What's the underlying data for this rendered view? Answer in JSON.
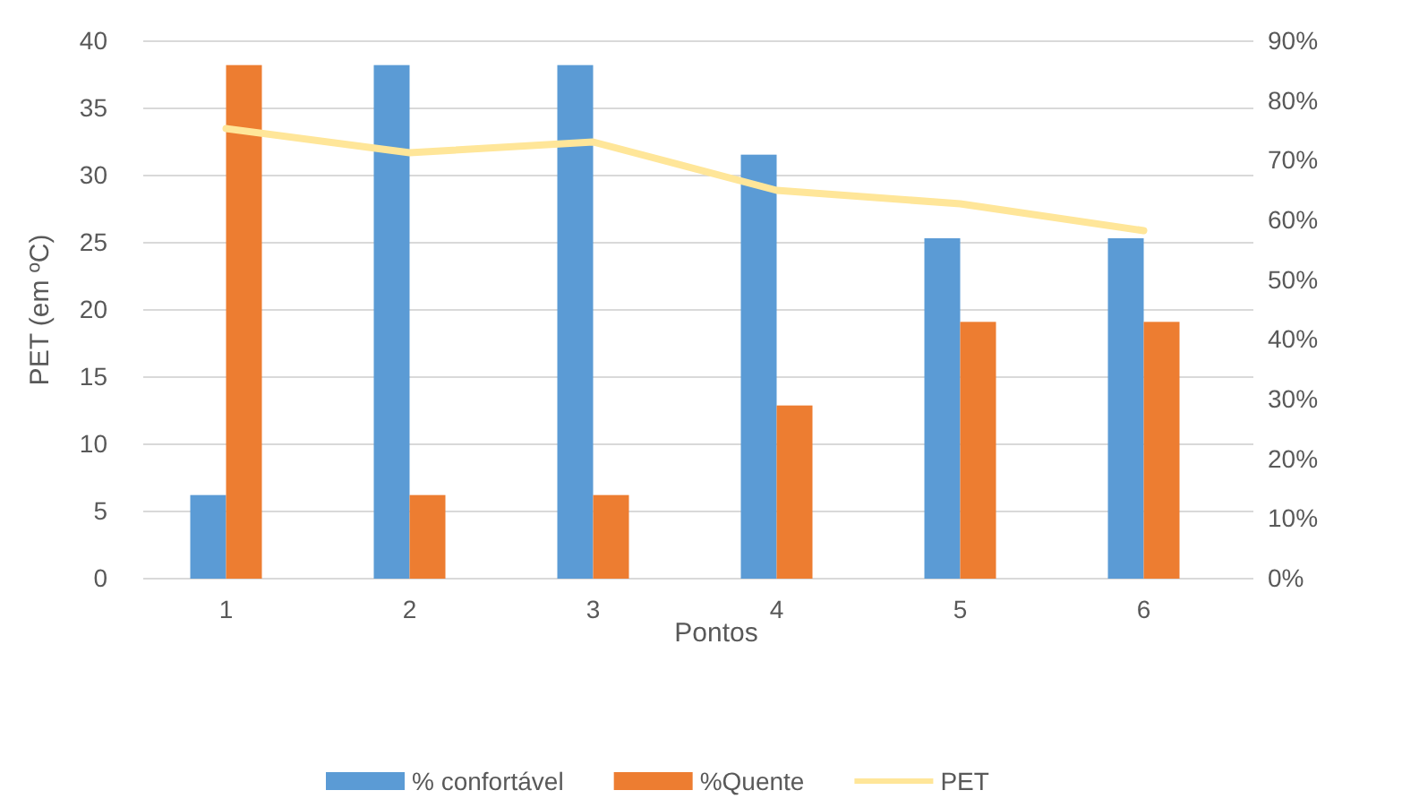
{
  "chart_data": {
    "type": "bar",
    "xlabel": "Pontos",
    "ylabel": "PET (em ºC)",
    "categories": [
      "1",
      "2",
      "3",
      "4",
      "5",
      "6"
    ],
    "series": [
      {
        "name": "% confortável",
        "color": "#5b9bd5",
        "axis": "y2",
        "values": [
          14,
          86,
          86,
          71,
          57,
          57
        ]
      },
      {
        "name": "%Quente",
        "color": "#ed7d31",
        "axis": "y2",
        "values": [
          86,
          14,
          14,
          29,
          43,
          43
        ]
      },
      {
        "name": "PET",
        "type": "line",
        "color": "#ffe699",
        "values": [
          33.5,
          31.7,
          32.5,
          28.9,
          27.9,
          25.9
        ]
      }
    ],
    "ylim": [
      0,
      40
    ],
    "yticks": [
      0,
      5,
      10,
      15,
      20,
      25,
      30,
      35,
      40
    ],
    "y2lim": [
      0,
      90
    ],
    "y2ticks": [
      {
        "value": 0,
        "label": "0%"
      },
      {
        "value": 10,
        "label": "10%"
      },
      {
        "value": 20,
        "label": "20%"
      },
      {
        "value": 30,
        "label": "30%"
      },
      {
        "value": 40,
        "label": "40%"
      },
      {
        "value": 50,
        "label": "50%"
      },
      {
        "value": 60,
        "label": "60%"
      },
      {
        "value": 70,
        "label": "70%"
      },
      {
        "value": 80,
        "label": "80%"
      },
      {
        "value": 90,
        "label": "90%"
      }
    ],
    "grid": "y",
    "legend": "bottom",
    "marker": "none"
  }
}
